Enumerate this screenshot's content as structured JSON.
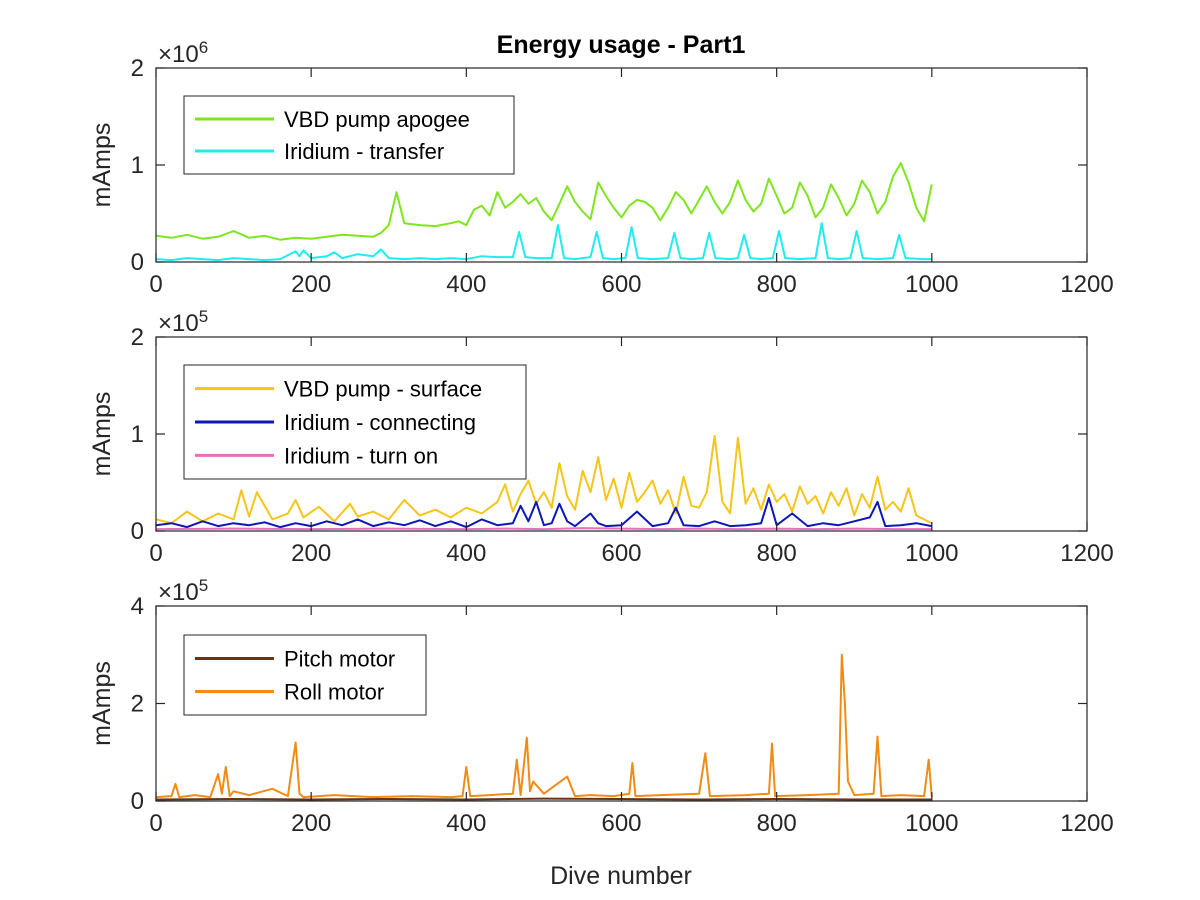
{
  "chart_data": {
    "type": "line",
    "title": "Energy usage - Part1",
    "xlabel": "Dive number",
    "subplots": [
      {
        "ylabel": "mAmps",
        "exponent_label": "×10",
        "exponent_power": "6",
        "xlim": [
          0,
          1200
        ],
        "ylim": [
          0,
          2000000
        ],
        "xticks": [
          "0",
          "200",
          "400",
          "600",
          "800",
          "1000",
          "1200"
        ],
        "yticks": [
          "0",
          "1",
          "2"
        ],
        "ytick_values": [
          0,
          1000000,
          2000000
        ],
        "legend_position": "top-left",
        "series": [
          {
            "name": "VBD pump apogee",
            "color": "#7ee51e",
            "x": [
              0,
              20,
              40,
              60,
              80,
              100,
              120,
              140,
              160,
              180,
              200,
              220,
              240,
              260,
              280,
              290,
              300,
              310,
              320,
              340,
              360,
              380,
              390,
              400,
              410,
              420,
              430,
              440,
              450,
              460,
              470,
              480,
              490,
              500,
              510,
              520,
              530,
              540,
              550,
              560,
              570,
              580,
              590,
              600,
              610,
              620,
              630,
              640,
              650,
              660,
              670,
              680,
              690,
              700,
              710,
              720,
              730,
              740,
              750,
              760,
              770,
              780,
              790,
              800,
              810,
              820,
              830,
              840,
              850,
              860,
              870,
              880,
              890,
              900,
              910,
              920,
              930,
              940,
              950,
              960,
              970,
              980,
              990,
              1000
            ],
            "values": [
              270000,
              250000,
              280000,
              240000,
              260000,
              320000,
              250000,
              270000,
              230000,
              250000,
              240000,
              260000,
              280000,
              270000,
              260000,
              300000,
              380000,
              720000,
              400000,
              380000,
              370000,
              400000,
              420000,
              380000,
              540000,
              580000,
              480000,
              720000,
              560000,
              620000,
              700000,
              600000,
              660000,
              520000,
              430000,
              600000,
              780000,
              620000,
              520000,
              440000,
              820000,
              680000,
              560000,
              460000,
              580000,
              640000,
              620000,
              560000,
              430000,
              560000,
              720000,
              640000,
              500000,
              640000,
              780000,
              620000,
              500000,
              620000,
              840000,
              640000,
              520000,
              600000,
              860000,
              680000,
              500000,
              560000,
              820000,
              680000,
              460000,
              560000,
              800000,
              660000,
              480000,
              600000,
              840000,
              720000,
              500000,
              620000,
              880000,
              1020000,
              820000,
              560000,
              420000,
              800000
            ]
          },
          {
            "name": "Iridium - transfer",
            "color": "#1fecf0",
            "x": [
              0,
              20,
              40,
              60,
              80,
              100,
              120,
              140,
              160,
              180,
              185,
              190,
              200,
              220,
              230,
              240,
              260,
              280,
              290,
              300,
              320,
              340,
              360,
              380,
              400,
              420,
              440,
              460,
              468,
              476,
              490,
              510,
              518,
              526,
              540,
              560,
              568,
              576,
              590,
              605,
              613,
              621,
              640,
              660,
              668,
              676,
              690,
              705,
              713,
              721,
              740,
              750,
              758,
              766,
              780,
              795,
              803,
              811,
              830,
              850,
              858,
              866,
              880,
              895,
              903,
              911,
              930,
              950,
              958,
              966,
              990,
              1000
            ],
            "values": [
              30000,
              20000,
              40000,
              30000,
              20000,
              40000,
              30000,
              20000,
              30000,
              110000,
              60000,
              120000,
              40000,
              60000,
              100000,
              40000,
              80000,
              60000,
              130000,
              40000,
              30000,
              40000,
              30000,
              40000,
              30000,
              60000,
              50000,
              50000,
              310000,
              50000,
              40000,
              40000,
              380000,
              40000,
              30000,
              50000,
              310000,
              40000,
              30000,
              40000,
              360000,
              40000,
              30000,
              40000,
              300000,
              40000,
              30000,
              40000,
              300000,
              40000,
              30000,
              40000,
              280000,
              40000,
              30000,
              40000,
              320000,
              40000,
              30000,
              40000,
              400000,
              40000,
              30000,
              40000,
              320000,
              40000,
              30000,
              40000,
              280000,
              40000,
              30000,
              30000
            ]
          }
        ]
      },
      {
        "ylabel": "mAmps",
        "exponent_label": "×10",
        "exponent_power": "5",
        "xlim": [
          0,
          1200
        ],
        "ylim": [
          0,
          200000
        ],
        "xticks": [
          "0",
          "200",
          "400",
          "600",
          "800",
          "1000",
          "1200"
        ],
        "yticks": [
          "0",
          "1",
          "2"
        ],
        "ytick_values": [
          0,
          100000,
          200000
        ],
        "legend_position": "top-left",
        "series": [
          {
            "name": "VBD pump - surface",
            "color": "#f5c518",
            "x": [
              0,
              20,
              40,
              60,
              80,
              100,
              110,
              120,
              130,
              150,
              170,
              180,
              190,
              210,
              230,
              250,
              260,
              280,
              300,
              320,
              340,
              360,
              380,
              400,
              420,
              440,
              450,
              460,
              470,
              480,
              490,
              500,
              510,
              520,
              530,
              540,
              550,
              560,
              570,
              580,
              590,
              600,
              610,
              620,
              630,
              640,
              650,
              660,
              670,
              680,
              690,
              700,
              710,
              720,
              730,
              740,
              750,
              760,
              770,
              780,
              790,
              800,
              810,
              820,
              830,
              840,
              850,
              860,
              870,
              880,
              890,
              900,
              910,
              920,
              930,
              940,
              950,
              960,
              970,
              980,
              990,
              1000
            ],
            "values": [
              12000,
              8000,
              20000,
              10000,
              18000,
              12000,
              42000,
              15000,
              40000,
              12000,
              18000,
              32000,
              14000,
              25000,
              10000,
              28000,
              15000,
              20000,
              12000,
              32000,
              16000,
              22000,
              14000,
              24000,
              18000,
              30000,
              48000,
              20000,
              38000,
              52000,
              28000,
              40000,
              24000,
              70000,
              36000,
              22000,
              62000,
              40000,
              76000,
              32000,
              54000,
              24000,
              60000,
              30000,
              40000,
              52000,
              28000,
              42000,
              18000,
              56000,
              26000,
              24000,
              40000,
              98000,
              30000,
              18000,
              96000,
              28000,
              44000,
              22000,
              48000,
              30000,
              38000,
              20000,
              46000,
              28000,
              36000,
              18000,
              40000,
              26000,
              44000,
              16000,
              38000,
              24000,
              56000,
              22000,
              30000,
              20000,
              44000,
              16000,
              12000,
              8000
            ]
          },
          {
            "name": "Iridium - connecting",
            "color": "#0b17b8",
            "x": [
              0,
              20,
              40,
              60,
              80,
              100,
              120,
              140,
              160,
              180,
              200,
              220,
              240,
              260,
              280,
              300,
              320,
              340,
              360,
              380,
              400,
              420,
              440,
              460,
              470,
              480,
              490,
              500,
              510,
              520,
              530,
              540,
              560,
              570,
              580,
              600,
              620,
              640,
              660,
              670,
              680,
              700,
              720,
              740,
              760,
              780,
              790,
              800,
              820,
              840,
              860,
              880,
              900,
              920,
              930,
              940,
              960,
              980,
              1000
            ],
            "values": [
              6000,
              8000,
              4000,
              10000,
              5000,
              8000,
              6000,
              9000,
              4000,
              8000,
              5000,
              10000,
              6000,
              12000,
              5000,
              9000,
              6000,
              11000,
              5000,
              10000,
              4000,
              12000,
              6000,
              8000,
              26000,
              10000,
              30000,
              6000,
              8000,
              28000,
              10000,
              5000,
              18000,
              8000,
              5000,
              6000,
              20000,
              5000,
              8000,
              24000,
              6000,
              5000,
              10000,
              5000,
              6000,
              8000,
              34000,
              6000,
              18000,
              5000,
              8000,
              6000,
              10000,
              14000,
              30000,
              5000,
              6000,
              8000,
              5000
            ]
          },
          {
            "name": "Iridium - turn on",
            "color": "#e86fbc",
            "x": [
              0,
              100,
              200,
              300,
              400,
              450,
              500,
              550,
              600,
              650,
              700,
              750,
              800,
              850,
              900,
              950,
              1000
            ],
            "values": [
              2000,
              2500,
              2000,
              2500,
              2000,
              2500,
              2000,
              3000,
              2500,
              2000,
              2500,
              2000,
              2500,
              2000,
              2500,
              2000,
              2000
            ]
          }
        ]
      },
      {
        "ylabel": "mAmps",
        "exponent_label": "×10",
        "exponent_power": "5",
        "xlim": [
          0,
          1200
        ],
        "ylim": [
          0,
          400000
        ],
        "xticks": [
          "0",
          "200",
          "400",
          "600",
          "800",
          "1000",
          "1200"
        ],
        "yticks": [
          "0",
          "2",
          "4"
        ],
        "ytick_values": [
          0,
          200000,
          400000
        ],
        "legend_position": "top-left",
        "series": [
          {
            "name": "Pitch motor",
            "color": "#6b3312",
            "x": [
              0,
              100,
              200,
              300,
              400,
              500,
              600,
              700,
              800,
              900,
              1000
            ],
            "values": [
              3000,
              4000,
              3000,
              4000,
              3000,
              5000,
              4000,
              3000,
              4000,
              3000,
              3000
            ]
          },
          {
            "name": "Roll motor",
            "color": "#f08c15",
            "x": [
              0,
              20,
              25,
              30,
              50,
              70,
              80,
              85,
              90,
              95,
              100,
              120,
              150,
              170,
              180,
              185,
              190,
              230,
              280,
              330,
              380,
              395,
              400,
              405,
              430,
              460,
              465,
              470,
              478,
              482,
              486,
              500,
              530,
              540,
              560,
              590,
              610,
              614,
              618,
              650,
              700,
              708,
              714,
              760,
              790,
              794,
              798,
              840,
              880,
              884,
              888,
              892,
              900,
              925,
              930,
              935,
              960,
              990,
              996,
              1000
            ],
            "values": [
              8000,
              10000,
              35000,
              8000,
              12000,
              8000,
              55000,
              15000,
              70000,
              10000,
              20000,
              12000,
              25000,
              10000,
              120000,
              15000,
              8000,
              12000,
              8000,
              10000,
              8000,
              10000,
              70000,
              10000,
              12000,
              15000,
              85000,
              12000,
              130000,
              20000,
              40000,
              15000,
              50000,
              10000,
              12000,
              10000,
              15000,
              78000,
              10000,
              12000,
              15000,
              98000,
              10000,
              12000,
              15000,
              118000,
              10000,
              12000,
              15000,
              300000,
              200000,
              40000,
              12000,
              15000,
              132000,
              10000,
              12000,
              10000,
              85000,
              8000
            ]
          }
        ]
      }
    ]
  }
}
